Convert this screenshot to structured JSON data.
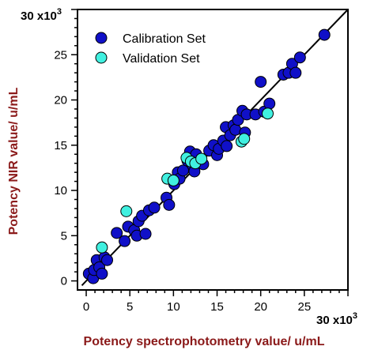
{
  "chart_data": {
    "type": "scatter",
    "xlabel": "Potency spectrophotometry value/ u/mL",
    "ylabel": "Potency NIR value/ u/mL",
    "x_multiplier": "30 x10",
    "y_multiplier": "30 x10",
    "multiplier_exponent": "3",
    "xlim": [
      -1,
      30
    ],
    "ylim": [
      -1,
      30
    ],
    "x_ticks": [
      0,
      5,
      10,
      15,
      20,
      25
    ],
    "y_ticks": [
      0,
      5,
      10,
      15,
      20,
      25
    ],
    "legend_position": "top-left",
    "fit_line": {
      "x": [
        -0.5,
        30
      ],
      "y": [
        -0.5,
        30
      ],
      "color": "#000000"
    },
    "series": [
      {
        "name": "Calibration Set",
        "color": "#1010c8",
        "points": [
          [
            0.3,
            0.8
          ],
          [
            0.8,
            0.3
          ],
          [
            0.9,
            1.2
          ],
          [
            1.2,
            2.3
          ],
          [
            1.5,
            1.5
          ],
          [
            1.8,
            0.8
          ],
          [
            2.1,
            2.6
          ],
          [
            2.4,
            2.3
          ],
          [
            3.5,
            5.3
          ],
          [
            4.4,
            4.4
          ],
          [
            4.8,
            6.0
          ],
          [
            5.5,
            5.6
          ],
          [
            5.8,
            5.0
          ],
          [
            6.0,
            6.6
          ],
          [
            6.4,
            7.2
          ],
          [
            6.8,
            5.2
          ],
          [
            7.2,
            7.8
          ],
          [
            7.8,
            8.1
          ],
          [
            9.2,
            9.2
          ],
          [
            9.5,
            8.4
          ],
          [
            10.1,
            10.7
          ],
          [
            10.5,
            12.0
          ],
          [
            10.7,
            11.3
          ],
          [
            11.1,
            12.2
          ],
          [
            11.6,
            13.3
          ],
          [
            11.9,
            14.3
          ],
          [
            12.2,
            12.8
          ],
          [
            12.4,
            12.1
          ],
          [
            12.6,
            14.0
          ],
          [
            13.0,
            13.2
          ],
          [
            13.4,
            12.9
          ],
          [
            14.1,
            14.4
          ],
          [
            14.6,
            15.0
          ],
          [
            15.0,
            13.9
          ],
          [
            15.2,
            14.6
          ],
          [
            15.7,
            15.5
          ],
          [
            16.0,
            17.0
          ],
          [
            16.1,
            14.9
          ],
          [
            16.5,
            16.1
          ],
          [
            16.9,
            17.2
          ],
          [
            17.1,
            16.7
          ],
          [
            17.4,
            17.8
          ],
          [
            17.9,
            18.8
          ],
          [
            18.2,
            16.4
          ],
          [
            18.4,
            18.4
          ],
          [
            19.4,
            18.4
          ],
          [
            20.0,
            22.0
          ],
          [
            20.4,
            18.7
          ],
          [
            21.0,
            19.6
          ],
          [
            22.6,
            22.8
          ],
          [
            23.2,
            23.0
          ],
          [
            23.6,
            24.0
          ],
          [
            24.0,
            23.0
          ],
          [
            24.5,
            24.7
          ],
          [
            27.3,
            27.2
          ]
        ]
      },
      {
        "name": "Validation Set",
        "color": "#40f0e0",
        "points": [
          [
            1.8,
            3.7
          ],
          [
            4.6,
            7.7
          ],
          [
            9.3,
            11.3
          ],
          [
            10.0,
            11.1
          ],
          [
            11.5,
            13.6
          ],
          [
            12.0,
            13.2
          ],
          [
            12.5,
            13.0
          ],
          [
            13.2,
            13.5
          ],
          [
            17.8,
            15.4
          ],
          [
            18.1,
            15.7
          ],
          [
            20.8,
            18.5
          ]
        ]
      }
    ]
  }
}
